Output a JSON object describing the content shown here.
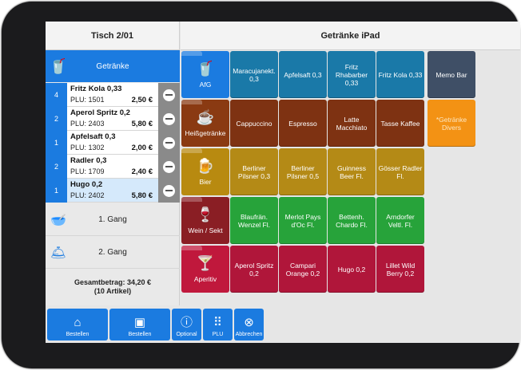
{
  "left_header": "Tisch 2/01",
  "right_header": "Getränke iPad",
  "category": {
    "icon": "drink-glass-icon",
    "label": "Getränke"
  },
  "order_items": [
    {
      "qty": "4",
      "name": "Fritz Kola 0,33",
      "plu": "PLU: 1501",
      "price": "2,50 €"
    },
    {
      "qty": "2",
      "name": "Aperol Spritz 0,2",
      "plu": "PLU: 2403",
      "price": "5,80 €"
    },
    {
      "qty": "1",
      "name": "Apfelsaft 0,3",
      "plu": "PLU: 1302",
      "price": "2,00 €"
    },
    {
      "qty": "2",
      "name": "Radler 0,3",
      "plu": "PLU: 1709",
      "price": "2,40 €"
    },
    {
      "qty": "1",
      "name": "Hugo 0,2",
      "plu": "PLU: 2402",
      "price": "5,80 €"
    }
  ],
  "courses": [
    {
      "label": "1. Gang",
      "icon": "bowl-icon"
    },
    {
      "label": "2. Gang",
      "icon": "cloche-icon"
    }
  ],
  "total": {
    "line1": "Gesamtbetrag: 34,20 €",
    "line2": "(10 Artikel)"
  },
  "categories": [
    {
      "label": "AfG",
      "icon": "glass-icon",
      "color": "#1b7be0"
    },
    {
      "label": "Heißgetränke",
      "icon": "cup-icon",
      "color": "#8a3a12"
    },
    {
      "label": "Bier",
      "icon": "beer-icon",
      "color": "#b88a10"
    },
    {
      "label": "Wein / Sekt",
      "icon": "wine-glass-icon",
      "color": "#8a1e24"
    },
    {
      "label": "Aperitiv",
      "icon": "cocktail-icon",
      "color": "#c0183c"
    }
  ],
  "products": [
    [
      "Maracujanekt. 0,3",
      "Apfelsaft 0,3",
      "Fritz Rhabarber 0,33",
      "Fritz Kola 0,33"
    ],
    [
      "Cappuccino",
      "Espresso",
      "Latte Macchiato",
      "Tasse Kaffee"
    ],
    [
      "Berliner Pilsner 0,3",
      "Berliner Pilsner 0,5",
      "Guinness Beer Fl.",
      "Gösser Radler Fl."
    ],
    [
      "Blaufrän. Wenzel Fl.",
      "Merlot Pays d'Oc Fl.",
      "Bettenh. Chardo Fl.",
      "Arndorfer Veltl. Fl."
    ],
    [
      "Aperol Spritz 0,2",
      "Campari Orange 0,2",
      "Hugo 0,2",
      "Lillet Wild Berry 0,2"
    ]
  ],
  "product_colors": [
    "#1a79a8",
    "#7e3212",
    "#b48a16",
    "#27a33a",
    "#b0163a"
  ],
  "special": [
    {
      "label": "Memo Bar",
      "color": "#3f4f66"
    },
    {
      "label": "*Getränke Divers",
      "color": "#f39214"
    }
  ],
  "bottom_buttons": [
    {
      "label": "Bestellen",
      "icon": "home-icon"
    },
    {
      "label": "Bestellen",
      "icon": "printer-icon"
    },
    {
      "label": "Optional",
      "icon": "info-icon"
    },
    {
      "label": "PLU",
      "icon": "keypad-icon"
    },
    {
      "label": "Abbrechen",
      "icon": "cancel-icon"
    }
  ]
}
